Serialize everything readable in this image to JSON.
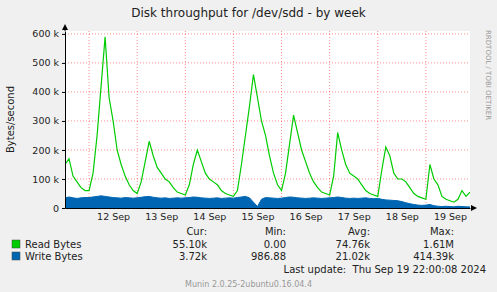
{
  "chart_data": {
    "type": "line",
    "title": "Disk throughput for /dev/sdd - by week",
    "y_label": "Bytes/second",
    "watermark": "RRDTOOL / TOBI OETIKER",
    "footer": "Last update:  Thu Sep 19 22:00:08 2024",
    "credit": "Munin 2.0.25-2ubuntu0.16.04.4",
    "grid": true,
    "ylim": [
      0,
      610000
    ],
    "yticks": [
      0,
      {
        "value": 100000,
        "label": "100 k"
      },
      {
        "value": 200000,
        "label": "200 k"
      },
      {
        "value": 300000,
        "label": "300 k"
      },
      {
        "value": 400000,
        "label": "400 k"
      },
      {
        "value": 500000,
        "label": "500 k"
      },
      {
        "value": 600000,
        "label": "600 k"
      }
    ],
    "categories": [
      null,
      null,
      null,
      null,
      null,
      null,
      null,
      null,
      null,
      null,
      null,
      null,
      "12 Sep",
      null,
      null,
      null,
      null,
      null,
      null,
      null,
      null,
      null,
      null,
      null,
      "13 Sep",
      null,
      null,
      null,
      null,
      null,
      null,
      null,
      null,
      null,
      null,
      null,
      "14 Sep",
      null,
      null,
      null,
      null,
      null,
      null,
      null,
      null,
      null,
      null,
      null,
      "15 Sep",
      null,
      null,
      null,
      null,
      null,
      null,
      null,
      null,
      null,
      null,
      null,
      "16 Sep",
      null,
      null,
      null,
      null,
      null,
      null,
      null,
      null,
      null,
      null,
      null,
      "17 Sep",
      null,
      null,
      null,
      null,
      null,
      null,
      null,
      null,
      null,
      null,
      null,
      "18 Sep",
      null,
      null,
      null,
      null,
      null,
      null,
      null,
      null,
      null,
      null,
      null,
      "19 Sep",
      null,
      null,
      null,
      null,
      null
    ],
    "summary_headers": [
      "Cur:",
      "Min:",
      "Avg:",
      "Max:"
    ],
    "series": [
      {
        "name": "Read Bytes",
        "type": "line",
        "color": "#00cc00",
        "summary": [
          {
            "value": 55100,
            "label": "55.10k"
          },
          {
            "value": 0,
            "label": "0.00"
          },
          {
            "value": 74760,
            "label": "74.76k"
          },
          {
            "value": 1610000,
            "label": "1.61M"
          }
        ],
        "values": [
          150000,
          170000,
          110000,
          90000,
          70000,
          60000,
          60000,
          120000,
          250000,
          420000,
          590000,
          380000,
          300000,
          200000,
          150000,
          110000,
          80000,
          60000,
          50000,
          90000,
          160000,
          230000,
          180000,
          140000,
          120000,
          100000,
          90000,
          70000,
          55000,
          50000,
          45000,
          80000,
          150000,
          200000,
          160000,
          120000,
          100000,
          90000,
          80000,
          60000,
          50000,
          45000,
          40000,
          60000,
          150000,
          250000,
          350000,
          460000,
          380000,
          300000,
          250000,
          180000,
          120000,
          80000,
          60000,
          120000,
          220000,
          320000,
          260000,
          200000,
          160000,
          120000,
          90000,
          70000,
          55000,
          50000,
          45000,
          110000,
          260000,
          200000,
          150000,
          120000,
          110000,
          100000,
          80000,
          60000,
          50000,
          45000,
          40000,
          130000,
          210000,
          180000,
          120000,
          100000,
          100000,
          90000,
          70000,
          50000,
          40000,
          35000,
          30000,
          150000,
          100000,
          80000,
          40000,
          30000,
          25000,
          20000,
          30000,
          60000,
          40000,
          55000
        ]
      },
      {
        "name": "Write Bytes",
        "type": "area",
        "color": "#0066b3",
        "summary": [
          {
            "value": 3720,
            "label": "3.72k"
          },
          {
            "value": 986.88,
            "label": "986.88"
          },
          {
            "value": 21020,
            "label": "21.02k"
          },
          {
            "value": 414390,
            "label": "414.39k"
          }
        ],
        "values": [
          35000,
          38000,
          35000,
          33000,
          35000,
          36000,
          36000,
          38000,
          40000,
          42000,
          40000,
          38000,
          36000,
          35000,
          34000,
          36000,
          35000,
          34000,
          35000,
          37000,
          39000,
          40000,
          37000,
          35000,
          34000,
          35000,
          33000,
          34000,
          35000,
          34000,
          35000,
          36000,
          38000,
          37000,
          35000,
          34000,
          33000,
          34000,
          35000,
          33000,
          34000,
          35000,
          34000,
          36000,
          38000,
          40000,
          35000,
          20000,
          5000,
          30000,
          36000,
          35000,
          34000,
          33000,
          34000,
          36000,
          38000,
          37000,
          35000,
          34000,
          33000,
          34000,
          35000,
          34000,
          33000,
          34000,
          35000,
          36000,
          38000,
          36000,
          34000,
          33000,
          34000,
          33000,
          34000,
          35000,
          33000,
          32000,
          33000,
          30000,
          28000,
          27000,
          26000,
          25000,
          22000,
          18000,
          15000,
          12000,
          10000,
          9000,
          10000,
          12000,
          8000,
          6000,
          5000,
          6000,
          5000,
          4000,
          6000,
          5000,
          4000,
          3720
        ]
      }
    ]
  }
}
